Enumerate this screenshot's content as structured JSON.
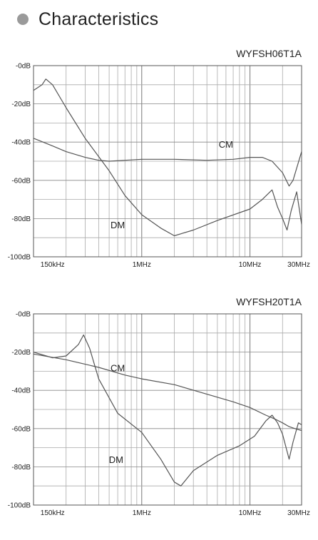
{
  "section": {
    "title": "Characteristics",
    "bullet_color": "#9a9a9a"
  },
  "chart_data": [
    {
      "type": "line",
      "title": "WYFSH06T1A",
      "xlabel": "",
      "ylabel": "",
      "xscale": "log",
      "xlim_hz": [
        100000,
        30000000
      ],
      "ylim": [
        -100,
        0
      ],
      "y_ticks": [
        0,
        -20,
        -40,
        -60,
        -80,
        -100
      ],
      "y_tick_labels": [
        "-0dB",
        "-20dB",
        "-40dB",
        "-60dB",
        "-80dB",
        "-100dB"
      ],
      "x_tick_labels": [
        {
          "label": "150kHz",
          "hz": 150000
        },
        {
          "label": "1MHz",
          "hz": 1000000
        },
        {
          "label": "10MHz",
          "hz": 10000000
        },
        {
          "label": "30MHz",
          "hz": 30000000
        }
      ],
      "grid": true,
      "series": [
        {
          "name": "CM",
          "color": "#555555",
          "label_at": {
            "hz": 6000000,
            "db": -43
          },
          "points": [
            [
              100000,
              -38
            ],
            [
              150000,
              -42
            ],
            [
              200000,
              -45
            ],
            [
              300000,
              -48
            ],
            [
              400000,
              -49.5
            ],
            [
              500000,
              -50
            ],
            [
              700000,
              -49.5
            ],
            [
              1000000,
              -49
            ],
            [
              2000000,
              -49
            ],
            [
              4000000,
              -49.5
            ],
            [
              7000000,
              -49
            ],
            [
              10000000,
              -48
            ],
            [
              13000000,
              -48
            ],
            [
              16000000,
              -50
            ],
            [
              20000000,
              -56
            ],
            [
              23000000,
              -63
            ],
            [
              25000000,
              -60
            ],
            [
              30000000,
              -45
            ]
          ]
        },
        {
          "name": "DM",
          "color": "#555555",
          "label_at": {
            "hz": 600000,
            "db": -85
          },
          "points": [
            [
              100000,
              -13
            ],
            [
              120000,
              -10
            ],
            [
              130000,
              -7
            ],
            [
              150000,
              -10
            ],
            [
              200000,
              -22
            ],
            [
              300000,
              -38
            ],
            [
              500000,
              -55
            ],
            [
              700000,
              -68
            ],
            [
              1000000,
              -78
            ],
            [
              1500000,
              -85
            ],
            [
              2000000,
              -89
            ],
            [
              3000000,
              -86
            ],
            [
              5000000,
              -81
            ],
            [
              10000000,
              -75
            ],
            [
              13000000,
              -70
            ],
            [
              16000000,
              -65
            ],
            [
              18000000,
              -74
            ],
            [
              20000000,
              -80
            ],
            [
              22000000,
              -86
            ],
            [
              24000000,
              -76
            ],
            [
              27000000,
              -66
            ],
            [
              30000000,
              -83
            ]
          ]
        }
      ]
    },
    {
      "type": "line",
      "title": "WYFSH20T1A",
      "xlabel": "",
      "ylabel": "",
      "xscale": "log",
      "xlim_hz": [
        100000,
        30000000
      ],
      "ylim": [
        -100,
        0
      ],
      "y_ticks": [
        0,
        -20,
        -40,
        -60,
        -80,
        -100
      ],
      "y_tick_labels": [
        "-0dB",
        "-20dB",
        "-40dB",
        "-60dB",
        "-80dB",
        "-100dB"
      ],
      "x_tick_labels": [
        {
          "label": "150kHz",
          "hz": 150000
        },
        {
          "label": "1MHz",
          "hz": 1000000
        },
        {
          "label": "10MHz",
          "hz": 10000000
        },
        {
          "label": "30MHz",
          "hz": 30000000
        }
      ],
      "grid": true,
      "series": [
        {
          "name": "CM",
          "color": "#555555",
          "label_at": {
            "hz": 600000,
            "db": -30
          },
          "points": [
            [
              100000,
              -21
            ],
            [
              200000,
              -24
            ],
            [
              400000,
              -28
            ],
            [
              700000,
              -32
            ],
            [
              1000000,
              -34
            ],
            [
              2000000,
              -37
            ],
            [
              4000000,
              -42
            ],
            [
              7000000,
              -46
            ],
            [
              10000000,
              -49
            ],
            [
              14000000,
              -53
            ],
            [
              17000000,
              -55
            ],
            [
              20000000,
              -57
            ],
            [
              23000000,
              -59
            ],
            [
              26000000,
              -60
            ],
            [
              30000000,
              -61
            ]
          ]
        },
        {
          "name": "DM",
          "color": "#555555",
          "label_at": {
            "hz": 580000,
            "db": -78
          },
          "points": [
            [
              100000,
              -20
            ],
            [
              150000,
              -23
            ],
            [
              200000,
              -22
            ],
            [
              260000,
              -16
            ],
            [
              290000,
              -11
            ],
            [
              330000,
              -18
            ],
            [
              400000,
              -34
            ],
            [
              600000,
              -52
            ],
            [
              1000000,
              -62
            ],
            [
              1500000,
              -76
            ],
            [
              2000000,
              -88
            ],
            [
              2300000,
              -90
            ],
            [
              3000000,
              -82
            ],
            [
              5000000,
              -74
            ],
            [
              8000000,
              -69
            ],
            [
              11000000,
              -64
            ],
            [
              14000000,
              -56
            ],
            [
              16000000,
              -53
            ],
            [
              18000000,
              -57
            ],
            [
              20000000,
              -63
            ],
            [
              23000000,
              -76
            ],
            [
              25000000,
              -67
            ],
            [
              28000000,
              -57
            ],
            [
              30000000,
              -58
            ]
          ]
        }
      ]
    }
  ]
}
